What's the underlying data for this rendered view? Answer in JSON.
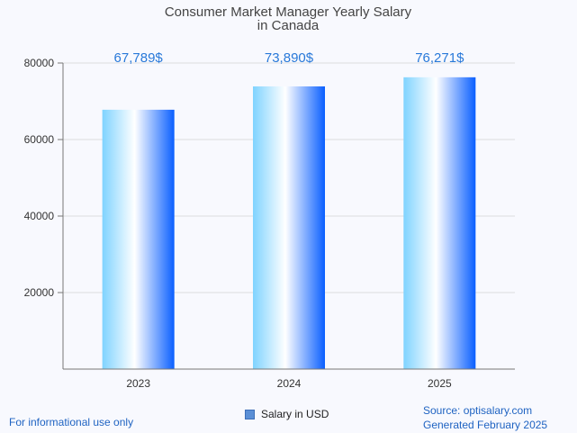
{
  "chart_data": {
    "type": "bar",
    "title": "Consumer Market Manager Yearly Salary",
    "subtitle": "in Canada",
    "categories": [
      "2023",
      "2024",
      "2025"
    ],
    "series": [
      {
        "name": "Salary in USD",
        "values": [
          67789,
          73890,
          76271
        ]
      }
    ],
    "data_labels": [
      "67,789$",
      "73,890$",
      "76,271$"
    ],
    "y_ticks": [
      "20000",
      "40000",
      "60000",
      "80000"
    ],
    "ylim": [
      0,
      80000
    ],
    "grid": true,
    "legend_position": "bottom-center",
    "bar_gradient": [
      "#7fd3ff",
      "#ffffff",
      "#0a5fff"
    ]
  },
  "footer": {
    "disclaimer": "For informational use only",
    "source": "Source: optisalary.com",
    "generated": "Generated February 2025"
  }
}
